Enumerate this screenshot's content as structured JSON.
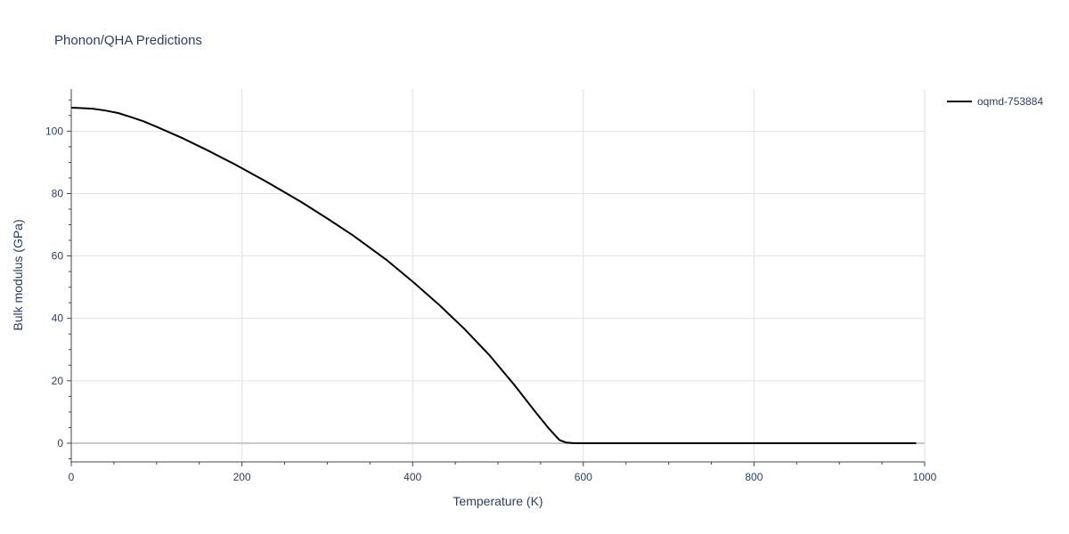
{
  "chart_data": {
    "type": "line",
    "title": "Phonon/QHA Predictions",
    "xlabel": "Temperature (K)",
    "ylabel": "Bulk modulus (GPa)",
    "xlim": [
      0,
      1000
    ],
    "ylim": [
      -6,
      113.5
    ],
    "xticks": [
      0,
      200,
      400,
      600,
      800,
      1000
    ],
    "yticks": [
      0,
      20,
      40,
      60,
      80,
      100
    ],
    "grid": true,
    "legend_position": "top-right",
    "series": [
      {
        "name": "oqmd-753884",
        "color": "#000000",
        "x": [
          0,
          10,
          25,
          40,
          55,
          70,
          85,
          100,
          130,
          160,
          190,
          230,
          270,
          300,
          330,
          370,
          400,
          430,
          460,
          490,
          520,
          545,
          560,
          572,
          580,
          590,
          600,
          650,
          700,
          800,
          900,
          990
        ],
        "y": [
          107.5,
          107.4,
          107.2,
          106.6,
          105.8,
          104.5,
          103.1,
          101.4,
          97.8,
          93.8,
          89.6,
          83.6,
          77.2,
          72.0,
          66.6,
          58.6,
          51.8,
          44.6,
          36.8,
          28.2,
          18.4,
          9.6,
          4.6,
          1.0,
          0.2,
          0,
          0,
          0,
          0,
          0,
          0,
          0
        ]
      }
    ]
  }
}
